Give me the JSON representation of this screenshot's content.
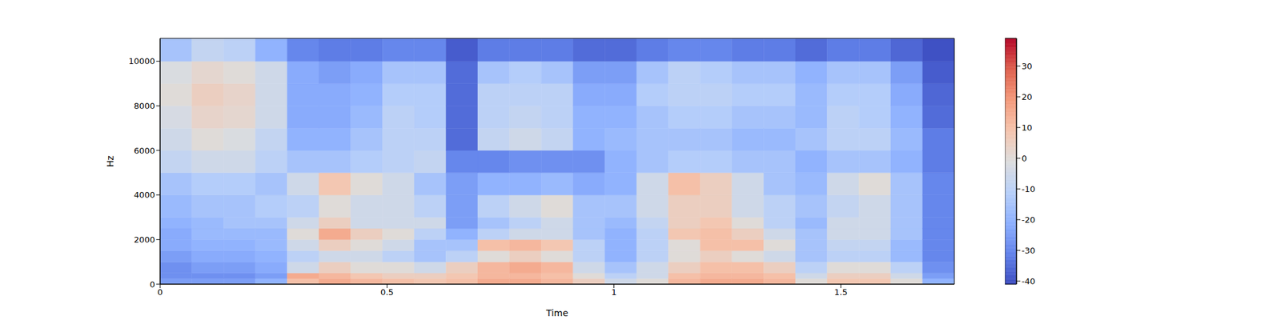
{
  "chart_data": {
    "type": "heatmap",
    "x_label": "Time",
    "y_label": "Hz",
    "xlim": [
      0,
      1.75
    ],
    "xticks": [
      0,
      0.5,
      1,
      1.5
    ],
    "ylim": [
      0,
      11025
    ],
    "yticks": [
      0,
      2000,
      4000,
      6000,
      8000,
      10000
    ],
    "grid": false,
    "x_edges": [
      0,
      0.07,
      0.14,
      0.21,
      0.28,
      0.35,
      0.42,
      0.49,
      0.56,
      0.63,
      0.7,
      0.77,
      0.84,
      0.91,
      0.98,
      1.05,
      1.12,
      1.19,
      1.26,
      1.33,
      1.4,
      1.47,
      1.54,
      1.61,
      1.68,
      1.75
    ],
    "y_edges": [
      0,
      250,
      500,
      1000,
      1500,
      2000,
      2500,
      3000,
      4000,
      5000,
      6000,
      7000,
      8000,
      9000,
      10000,
      11025
    ],
    "cells": [
      [
        -25,
        -28,
        -28,
        -25,
        -22,
        -22,
        -20,
        -18,
        -15,
        -8,
        -5,
        -3,
        0,
        -2,
        -15
      ],
      [
        -25,
        -28,
        -25,
        -22,
        -20,
        -18,
        -18,
        -15,
        -12,
        -5,
        0,
        3,
        5,
        2,
        -8
      ],
      [
        -25,
        -28,
        -25,
        -22,
        -20,
        -18,
        -15,
        -15,
        -12,
        -5,
        -2,
        2,
        3,
        0,
        -10
      ],
      [
        -20,
        -25,
        -22,
        -20,
        -18,
        -18,
        -15,
        -12,
        -15,
        -10,
        -8,
        -5,
        -5,
        -5,
        -20
      ],
      [
        10,
        15,
        -5,
        -10,
        -5,
        0,
        -5,
        -10,
        -5,
        -15,
        -20,
        -22,
        -22,
        -22,
        -30
      ],
      [
        15,
        12,
        5,
        -5,
        5,
        15,
        5,
        0,
        8,
        -15,
        -20,
        -22,
        -22,
        -25,
        -32
      ],
      [
        12,
        8,
        0,
        -5,
        0,
        5,
        -5,
        -5,
        0,
        -12,
        -15,
        -18,
        -20,
        -22,
        -32
      ],
      [
        10,
        5,
        0,
        -10,
        -5,
        0,
        -5,
        -5,
        -5,
        -10,
        -10,
        -10,
        -12,
        -15,
        -30
      ],
      [
        8,
        5,
        -5,
        -15,
        -15,
        -10,
        -5,
        -10,
        -15,
        -8,
        -10,
        -12,
        -12,
        -15,
        -30
      ],
      [
        10,
        8,
        5,
        -10,
        -15,
        -20,
        -25,
        -25,
        -25,
        -30,
        -35,
        -35,
        -35,
        -35,
        -38
      ],
      [
        15,
        12,
        12,
        0,
        10,
        -10,
        -15,
        -10,
        -20,
        -30,
        -8,
        -10,
        -10,
        -15,
        -32
      ],
      [
        15,
        12,
        15,
        5,
        12,
        -5,
        -10,
        -5,
        -20,
        -28,
        -5,
        -8,
        -10,
        -12,
        -32
      ],
      [
        12,
        10,
        12,
        0,
        8,
        -5,
        -5,
        0,
        -18,
        -28,
        -8,
        -10,
        -10,
        -15,
        -32
      ],
      [
        5,
        0,
        -5,
        -10,
        -10,
        -15,
        -15,
        -15,
        -22,
        -28,
        -20,
        -20,
        -22,
        -25,
        -35
      ],
      [
        -5,
        -10,
        -15,
        -20,
        -20,
        -20,
        -18,
        -15,
        -20,
        -20,
        -18,
        -20,
        -22,
        -25,
        -35
      ],
      [
        0,
        -5,
        -5,
        -10,
        -10,
        -10,
        -8,
        -5,
        -5,
        -15,
        -15,
        -15,
        -12,
        -15,
        -32
      ],
      [
        12,
        10,
        5,
        0,
        0,
        8,
        5,
        5,
        10,
        -12,
        -15,
        -12,
        -10,
        -10,
        -30
      ],
      [
        15,
        12,
        10,
        5,
        10,
        10,
        8,
        5,
        5,
        -12,
        -15,
        -12,
        -10,
        -12,
        -30
      ],
      [
        15,
        12,
        10,
        0,
        10,
        5,
        0,
        -5,
        -5,
        -15,
        -18,
        -15,
        -12,
        -15,
        -32
      ],
      [
        12,
        10,
        5,
        -5,
        0,
        -5,
        -10,
        -10,
        -15,
        -15,
        -18,
        -15,
        -12,
        -15,
        -32
      ],
      [
        0,
        -5,
        -10,
        -15,
        -15,
        -15,
        -18,
        -15,
        -18,
        -20,
        -15,
        -18,
        -18,
        -20,
        -35
      ],
      [
        8,
        5,
        0,
        -10,
        -8,
        -5,
        -5,
        -8,
        -5,
        -15,
        -10,
        -10,
        -12,
        -15,
        -32
      ],
      [
        8,
        5,
        0,
        -10,
        -8,
        -5,
        -5,
        -5,
        0,
        -15,
        -10,
        -12,
        -12,
        -15,
        -32
      ],
      [
        0,
        -5,
        -10,
        -18,
        -18,
        -15,
        -15,
        -15,
        -15,
        -20,
        -18,
        -20,
        -22,
        -25,
        -36
      ],
      [
        -20,
        -25,
        -28,
        -30,
        -30,
        -30,
        -30,
        -30,
        -30,
        -32,
        -32,
        -35,
        -36,
        -38,
        -40
      ]
    ],
    "colorbar": {
      "range": [
        -41,
        39
      ],
      "ticks": [
        -40,
        -30,
        -20,
        -10,
        0,
        10,
        20,
        30
      ]
    }
  }
}
